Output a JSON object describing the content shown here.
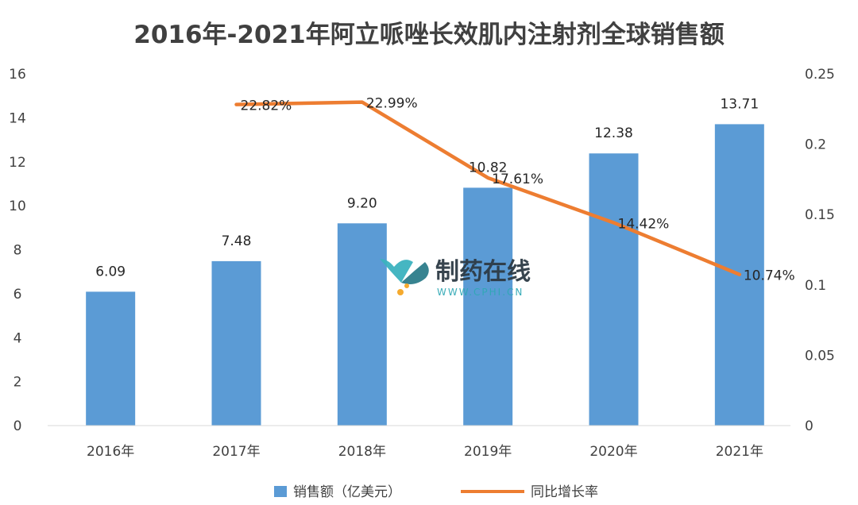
{
  "chart_data": {
    "type": "bar",
    "title": "2016年-2021年阿立哌唑长效肌内注射剂全球销售额",
    "categories": [
      "2016年",
      "2017年",
      "2018年",
      "2019年",
      "2020年",
      "2021年"
    ],
    "series": [
      {
        "name": "销售额（亿美元）",
        "type": "bar",
        "axis": "left",
        "color": "#5b9bd5",
        "values": [
          6.09,
          7.48,
          9.2,
          10.82,
          12.38,
          13.71
        ],
        "labels": [
          "6.09",
          "7.48",
          "9.20",
          "10.82",
          "12.38",
          "13.71"
        ]
      },
      {
        "name": "同比增长率",
        "type": "line",
        "axis": "right",
        "color": "#ed7d31",
        "values": [
          null,
          0.2282,
          0.2299,
          0.1761,
          0.1442,
          0.1074
        ],
        "labels": [
          "",
          "22.82%",
          "22.99%",
          "17.61%",
          "14.42%",
          "10.74%"
        ]
      }
    ],
    "y_left": {
      "min": 0,
      "max": 16,
      "ticks": [
        "0",
        "2",
        "4",
        "6",
        "8",
        "10",
        "12",
        "14",
        "16"
      ]
    },
    "y_right": {
      "min": 0,
      "max": 0.25,
      "ticks": [
        "0",
        "0.05",
        "0.1",
        "0.15",
        "0.2",
        "0.25"
      ]
    },
    "grid": false,
    "legend": "bottom"
  },
  "watermark": {
    "text": "制药在线",
    "url": "WWW.CPHI.CN"
  }
}
